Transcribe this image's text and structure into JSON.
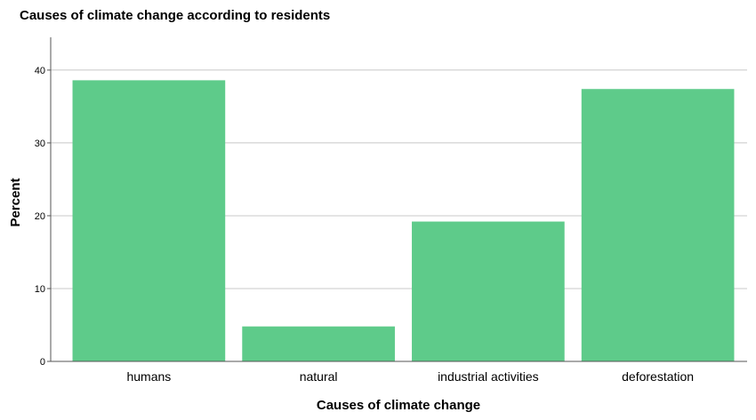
{
  "chart_data": {
    "type": "bar",
    "title": "Causes of climate change according to residents",
    "xlabel": "Causes of climate change",
    "ylabel": "Percent",
    "categories": [
      "humans",
      "natural",
      "industrial activities",
      "deforestation"
    ],
    "values": [
      38.6,
      4.8,
      19.2,
      37.4
    ],
    "ylim": [
      0,
      44.5
    ],
    "yticks": [
      0,
      10,
      20,
      30,
      40
    ],
    "grid": true,
    "bar_color": "#5ecb8a",
    "grid_color": "#c8c8c8",
    "axis_color": "#555555"
  }
}
